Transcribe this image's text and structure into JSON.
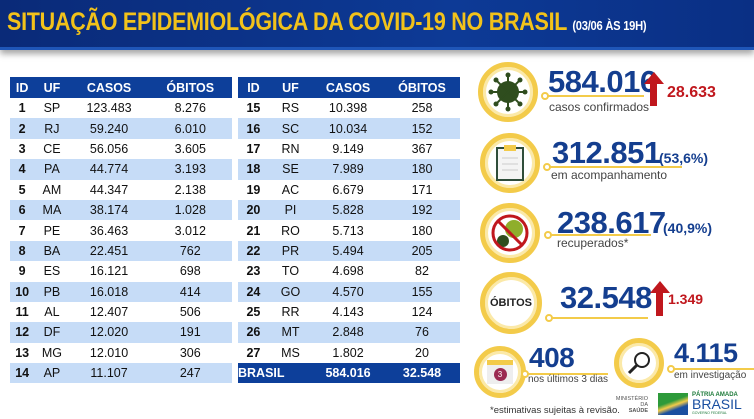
{
  "header": {
    "title": "SITUAÇÃO EPIDEMIOLÓGICA DA COVID-19 NO BRASIL",
    "subtitle": "(03/06 ÀS 19H)"
  },
  "table": {
    "columns": [
      "ID",
      "UF",
      "CASOS",
      "ÓBITOS"
    ],
    "rows": [
      [
        "1",
        "SP",
        "123.483",
        "8.276"
      ],
      [
        "2",
        "RJ",
        "59.240",
        "6.010"
      ],
      [
        "3",
        "CE",
        "56.056",
        "3.605"
      ],
      [
        "4",
        "PA",
        "44.774",
        "3.193"
      ],
      [
        "5",
        "AM",
        "44.347",
        "2.138"
      ],
      [
        "6",
        "MA",
        "38.174",
        "1.028"
      ],
      [
        "7",
        "PE",
        "36.463",
        "3.012"
      ],
      [
        "8",
        "BA",
        "22.451",
        "762"
      ],
      [
        "9",
        "ES",
        "16.121",
        "698"
      ],
      [
        "10",
        "PB",
        "16.018",
        "414"
      ],
      [
        "11",
        "AL",
        "12.407",
        "506"
      ],
      [
        "12",
        "DF",
        "12.020",
        "191"
      ],
      [
        "13",
        "MG",
        "12.010",
        "306"
      ],
      [
        "14",
        "AP",
        "11.107",
        "247"
      ],
      [
        "15",
        "RS",
        "10.398",
        "258"
      ],
      [
        "16",
        "SC",
        "10.034",
        "152"
      ],
      [
        "17",
        "RN",
        "9.149",
        "367"
      ],
      [
        "18",
        "SE",
        "7.989",
        "180"
      ],
      [
        "19",
        "AC",
        "6.679",
        "171"
      ],
      [
        "20",
        "PI",
        "5.828",
        "192"
      ],
      [
        "21",
        "RO",
        "5.713",
        "180"
      ],
      [
        "22",
        "PR",
        "5.494",
        "205"
      ],
      [
        "23",
        "TO",
        "4.698",
        "82"
      ],
      [
        "24",
        "GO",
        "4.570",
        "155"
      ],
      [
        "25",
        "RR",
        "4.143",
        "124"
      ],
      [
        "26",
        "MT",
        "2.848",
        "76"
      ],
      [
        "27",
        "MS",
        "1.802",
        "20"
      ]
    ],
    "total": {
      "label": "BRASIL",
      "casos": "584.016",
      "obitos": "32.548"
    }
  },
  "stats": {
    "confirmed": {
      "value": "584.016",
      "label": "casos confirmados",
      "increase": "28.633",
      "icon": "virus-icon"
    },
    "monitoring": {
      "value": "312.851",
      "pct": "(53,6%)",
      "label": "em acompanhamento",
      "icon": "clipboard-icon"
    },
    "recovered": {
      "value": "238.617",
      "pct": "(40,9%)",
      "label": "recuperados*",
      "icon": "no-virus-icon"
    },
    "deaths": {
      "badge": "ÓBITOS",
      "value": "32.548",
      "increase": "1.349"
    },
    "recent": {
      "value": "408",
      "label": "nos últimos 3 dias",
      "calendar_day": "3",
      "icon": "calendar-icon"
    },
    "investigation": {
      "value": "4.115",
      "label": "em investigação",
      "icon": "magnifier-icon"
    }
  },
  "footer": {
    "note": "*estimativas sujeitas à revisão.",
    "ministry": "MINISTÉRIO DA",
    "ministry2": "SAÚDE",
    "brand1": "PÁTRIA AMADA",
    "brand2": "BRASIL",
    "brand3": "GOVERNO FEDERAL"
  },
  "colors": {
    "navy": "#0d3f9a",
    "gold": "#f3cb4a",
    "red": "#c0171d",
    "row_alt": "#c6dcf7"
  }
}
